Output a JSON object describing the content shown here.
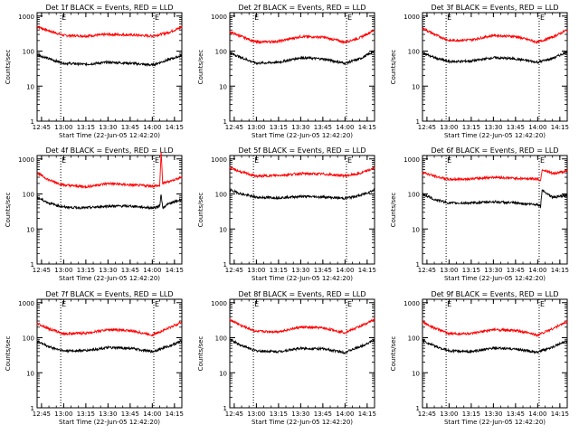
{
  "figure": {
    "xlabel": "Start Time (22-Jun-05 12:42:20)",
    "ylabel": "Counts/sec",
    "x_tick_labels": [
      "12:45",
      "13:00",
      "13:15",
      "13:30",
      "13:45",
      "14:00",
      "14:15"
    ],
    "y_tick_labels": [
      "1",
      "10",
      "100",
      "1000"
    ],
    "marker_label": "E",
    "colors": {
      "events": "#000000",
      "lld": "#ff0000",
      "axes": "#000000"
    }
  },
  "chart_data": [
    {
      "type": "line",
      "title": "Det 1f BLACK = Events, RED = LLD",
      "xlabel": "Start Time (22-Jun-05 12:42:20)",
      "ylabel": "Counts/sec",
      "x_range": [
        "12:42",
        "14:20"
      ],
      "ylim": [
        1,
        1000
      ],
      "y_scale": "log",
      "vertical_markers": [
        "12:58",
        "14:01"
      ],
      "x": [
        "12:42",
        "12:50",
        "13:00",
        "13:15",
        "13:30",
        "13:45",
        "14:00",
        "14:10",
        "14:20"
      ],
      "series": [
        {
          "color": "#ff0000",
          "values": [
            500,
            380,
            280,
            270,
            300,
            290,
            270,
            330,
            480
          ]
        },
        {
          "color": "#000000",
          "values": [
            80,
            60,
            45,
            42,
            48,
            45,
            40,
            55,
            75
          ]
        }
      ]
    },
    {
      "type": "line",
      "title": "Det 2f BLACK = Events, RED = LLD",
      "xlabel": "Start Time (22-Jun-05 12:42:20)",
      "ylabel": "Counts/sec",
      "x_range": [
        "12:42",
        "14:20"
      ],
      "ylim": [
        1,
        1000
      ],
      "y_scale": "log",
      "vertical_markers": [
        "12:58",
        "14:01"
      ],
      "x": [
        "12:42",
        "12:50",
        "13:00",
        "13:15",
        "13:30",
        "13:45",
        "14:00",
        "14:10",
        "14:20"
      ],
      "series": [
        {
          "color": "#ff0000",
          "values": [
            350,
            260,
            180,
            190,
            260,
            250,
            180,
            240,
            400
          ]
        },
        {
          "color": "#000000",
          "values": [
            90,
            65,
            45,
            48,
            65,
            60,
            45,
            60,
            100
          ]
        }
      ]
    },
    {
      "type": "line",
      "title": "Det 3f BLACK = Events, RED = LLD",
      "xlabel": "Start Time (22-Jun-05 12:42:20)",
      "ylabel": "Counts/sec",
      "x_range": [
        "12:42",
        "14:20"
      ],
      "ylim": [
        1,
        1000
      ],
      "y_scale": "log",
      "vertical_markers": [
        "12:58",
        "14:01"
      ],
      "x": [
        "12:42",
        "12:50",
        "13:00",
        "13:15",
        "13:30",
        "13:45",
        "14:00",
        "14:10",
        "14:20"
      ],
      "series": [
        {
          "color": "#ff0000",
          "values": [
            450,
            300,
            200,
            210,
            280,
            260,
            180,
            250,
            400
          ]
        },
        {
          "color": "#000000",
          "values": [
            90,
            65,
            50,
            52,
            65,
            60,
            48,
            62,
            95
          ]
        }
      ]
    },
    {
      "type": "line",
      "title": "Det 4f BLACK = Events, RED = LLD",
      "xlabel": "Start Time (22-Jun-05 12:42:20)",
      "ylabel": "Counts/sec",
      "x_range": [
        "12:42",
        "14:20"
      ],
      "ylim": [
        1,
        1000
      ],
      "y_scale": "log",
      "vertical_markers": [
        "12:58",
        "14:01"
      ],
      "x": [
        "12:42",
        "12:50",
        "13:00",
        "13:15",
        "13:30",
        "13:45",
        "14:00",
        "14:05",
        "14:06",
        "14:07",
        "14:10",
        "14:20"
      ],
      "series": [
        {
          "color": "#ff0000",
          "values": [
            400,
            250,
            180,
            160,
            200,
            180,
            170,
            170,
            1500,
            200,
            220,
            300
          ]
        },
        {
          "color": "#000000",
          "values": [
            80,
            55,
            42,
            40,
            45,
            45,
            40,
            45,
            100,
            40,
            50,
            70
          ]
        }
      ]
    },
    {
      "type": "line",
      "title": "Det 5f BLACK = Events, RED = LLD",
      "xlabel": "Start Time (22-Jun-05 12:42:20)",
      "ylabel": "Counts/sec",
      "x_range": [
        "12:42",
        "14:20"
      ],
      "ylim": [
        1,
        1000
      ],
      "y_scale": "log",
      "vertical_markers": [
        "12:58",
        "14:01"
      ],
      "x": [
        "12:42",
        "12:50",
        "13:00",
        "13:15",
        "13:30",
        "13:45",
        "14:00",
        "14:10",
        "14:20"
      ],
      "series": [
        {
          "color": "#ff0000",
          "values": [
            550,
            420,
            320,
            340,
            380,
            370,
            330,
            380,
            550
          ]
        },
        {
          "color": "#000000",
          "values": [
            130,
            100,
            80,
            78,
            85,
            82,
            75,
            90,
            130
          ]
        }
      ]
    },
    {
      "type": "line",
      "title": "Det 6f BLACK = Events, RED = LLD",
      "xlabel": "Start Time (22-Jun-05 12:42:20)",
      "ylabel": "Counts/sec",
      "x_range": [
        "12:42",
        "14:20"
      ],
      "ylim": [
        1,
        1000
      ],
      "y_scale": "log",
      "vertical_markers": [
        "12:58",
        "14:01"
      ],
      "x": [
        "12:42",
        "12:50",
        "13:00",
        "13:15",
        "13:30",
        "13:45",
        "14:00",
        "14:02",
        "14:03",
        "14:10",
        "14:20"
      ],
      "series": [
        {
          "color": "#ff0000",
          "values": [
            420,
            320,
            260,
            270,
            300,
            280,
            270,
            240,
            500,
            380,
            450
          ]
        },
        {
          "color": "#000000",
          "values": [
            100,
            70,
            55,
            55,
            60,
            55,
            50,
            45,
            130,
            80,
            90
          ]
        }
      ]
    },
    {
      "type": "line",
      "title": "Det 7f BLACK = Events, RED = LLD",
      "xlabel": "Start Time (22-Jun-05 12:42:20)",
      "ylabel": "Counts/sec",
      "x_range": [
        "12:42",
        "14:20"
      ],
      "ylim": [
        1,
        1000
      ],
      "y_scale": "log",
      "vertical_markers": [
        "12:58",
        "14:01"
      ],
      "x": [
        "12:42",
        "12:50",
        "13:00",
        "13:15",
        "13:30",
        "13:45",
        "14:00",
        "14:10",
        "14:20"
      ],
      "series": [
        {
          "color": "#ff0000",
          "values": [
            260,
            180,
            130,
            135,
            170,
            160,
            120,
            180,
            280
          ]
        },
        {
          "color": "#000000",
          "values": [
            80,
            55,
            42,
            43,
            52,
            50,
            40,
            55,
            80
          ]
        }
      ]
    },
    {
      "type": "line",
      "title": "Det 8f BLACK = Events, RED = LLD",
      "xlabel": "Start Time (22-Jun-05 12:42:20)",
      "ylabel": "Counts/sec",
      "x_range": [
        "12:42",
        "14:20"
      ],
      "ylim": [
        1,
        1000
      ],
      "y_scale": "log",
      "vertical_markers": [
        "12:58",
        "14:01"
      ],
      "x": [
        "12:42",
        "12:50",
        "13:00",
        "13:15",
        "13:30",
        "13:45",
        "14:00",
        "14:10",
        "14:20"
      ],
      "series": [
        {
          "color": "#ff0000",
          "values": [
            330,
            220,
            150,
            150,
            200,
            190,
            140,
            210,
            330
          ]
        },
        {
          "color": "#000000",
          "values": [
            90,
            60,
            42,
            40,
            50,
            48,
            38,
            55,
            85
          ]
        }
      ]
    },
    {
      "type": "line",
      "title": "Det 9f BLACK = Events, RED = LLD",
      "xlabel": "Start Time (22-Jun-05 12:42:20)",
      "ylabel": "Counts/sec",
      "x_range": [
        "12:42",
        "14:20"
      ],
      "ylim": [
        1,
        1000
      ],
      "y_scale": "log",
      "vertical_markers": [
        "12:58",
        "14:01"
      ],
      "x": [
        "12:42",
        "12:50",
        "13:00",
        "13:15",
        "13:30",
        "13:45",
        "14:00",
        "14:10",
        "14:20"
      ],
      "series": [
        {
          "color": "#ff0000",
          "values": [
            280,
            190,
            130,
            130,
            170,
            160,
            120,
            180,
            290
          ]
        },
        {
          "color": "#000000",
          "values": [
            85,
            58,
            42,
            40,
            50,
            48,
            38,
            55,
            80
          ]
        }
      ]
    }
  ]
}
